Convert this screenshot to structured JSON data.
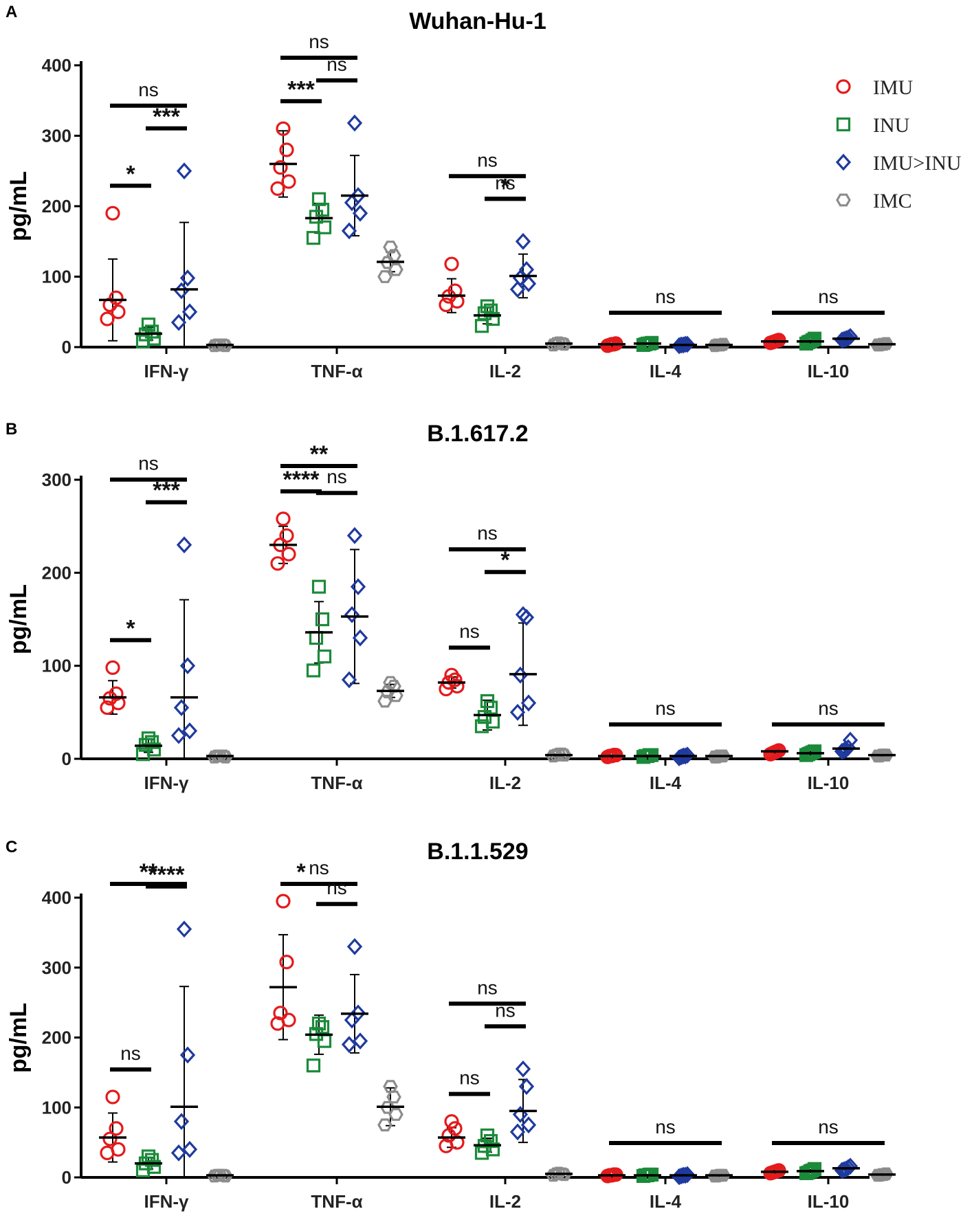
{
  "legend": [
    {
      "label": "IMU",
      "color": "#e41a1c",
      "marker": "circle"
    },
    {
      "label": "INU",
      "color": "#1b8a3a",
      "marker": "square"
    },
    {
      "label": "IMU>INU",
      "color": "#1f3a9e",
      "marker": "diamond"
    },
    {
      "label": "IMC",
      "color": "#8c8c8c",
      "marker": "hexagon"
    }
  ],
  "chart_data": [
    {
      "type": "scatter",
      "panel_label": "A",
      "title": "Wuhan-Hu-1",
      "xlabel": "",
      "ylabel": "pg/mL",
      "ylim": [
        0,
        400
      ],
      "yticks": [
        "0",
        "100",
        "200",
        "300",
        "400"
      ],
      "categories": [
        "IFN-γ",
        "TNF-α",
        "IL-2",
        "IL-4",
        "IL-10"
      ],
      "series": [
        {
          "name": "IMU",
          "points": [
            [
              40,
              50,
              60,
              70,
              190
            ],
            [
              225,
              235,
              255,
              280,
              310
            ],
            [
              60,
              65,
              72,
              80,
              118
            ],
            [
              2,
              3,
              4,
              4,
              5
            ],
            [
              6,
              7,
              8,
              9,
              10
            ]
          ],
          "mean": [
            67,
            260,
            73,
            4,
            8
          ],
          "sd": [
            58,
            47,
            24,
            1,
            2
          ]
        },
        {
          "name": "INU",
          "points": [
            [
              8,
              12,
              18,
              22,
              32
            ],
            [
              155,
              170,
              185,
              195,
              210
            ],
            [
              30,
              40,
              48,
              52,
              58
            ],
            [
              3,
              4,
              5,
              5,
              6
            ],
            [
              5,
              7,
              8,
              10,
              12
            ]
          ],
          "mean": [
            19,
            183,
            45,
            5,
            8
          ],
          "sd": [
            9,
            21,
            12,
            1,
            2
          ]
        },
        {
          "name": "IMU>INU",
          "points": [
            [
              35,
              50,
              80,
              98,
              250
            ],
            [
              165,
              190,
              205,
              215,
              318
            ],
            [
              82,
              90,
              98,
              110,
              150
            ],
            [
              2,
              3,
              3,
              4,
              4
            ],
            [
              10,
              11,
              12,
              13,
              15
            ]
          ],
          "mean": [
            82,
            215,
            101,
            3,
            12
          ],
          "sd": [
            95,
            57,
            31,
            1,
            2
          ]
        },
        {
          "name": "IMC",
          "points": [
            [
              2,
              2,
              3,
              3,
              3
            ],
            [
              100,
              110,
              120,
              130,
              142
            ],
            [
              3,
              4,
              5,
              5,
              6
            ],
            [
              2,
              3,
              3,
              3,
              4
            ],
            [
              3,
              3,
              4,
              4,
              5
            ]
          ],
          "mean": [
            3,
            121,
            5,
            3,
            4
          ],
          "sd": [
            0,
            14,
            1,
            0,
            1
          ]
        }
      ],
      "comparisons": [
        {
          "label": "ns",
          "group": 0,
          "from": 0,
          "to": 2
        },
        {
          "label": "***",
          "group": 0,
          "from": 1,
          "to": 2
        },
        {
          "label": "*",
          "group": 0,
          "from": 0,
          "to": 1
        },
        {
          "label": "ns",
          "group": 1,
          "from": 0,
          "to": 2
        },
        {
          "label": "ns",
          "group": 1,
          "from": 1,
          "to": 2
        },
        {
          "label": "***",
          "group": 1,
          "from": 0,
          "to": 1
        },
        {
          "label": "ns",
          "group": 2,
          "from": 0,
          "to": 2
        },
        {
          "label": "ns",
          "group": 2,
          "from": 1,
          "to": 2
        },
        {
          "label": "*",
          "group": 2,
          "from": 1,
          "to": 2
        },
        {
          "label": "ns",
          "group": 3,
          "from": 0,
          "to": 3
        },
        {
          "label": "ns",
          "group": 4,
          "from": 0,
          "to": 3
        }
      ]
    },
    {
      "type": "scatter",
      "panel_label": "B",
      "title": "B.1.617.2",
      "xlabel": "",
      "ylabel": "pg/mL",
      "ylim": [
        0,
        300
      ],
      "yticks": [
        "0",
        "100",
        "200",
        "300"
      ],
      "categories": [
        "IFN-γ",
        "TNF-α",
        "IL-2",
        "IL-4",
        "IL-10"
      ],
      "series": [
        {
          "name": "IMU",
          "points": [
            [
              55,
              60,
              65,
              70,
              98
            ],
            [
              210,
              220,
              230,
              240,
              258
            ],
            [
              75,
              78,
              82,
              85,
              90
            ],
            [
              2,
              3,
              3,
              4,
              4
            ],
            [
              5,
              6,
              7,
              8,
              9
            ]
          ],
          "mean": [
            66,
            230,
            82,
            3,
            8
          ],
          "sd": [
            18,
            20,
            6,
            1,
            2
          ]
        },
        {
          "name": "INU",
          "points": [
            [
              5,
              10,
              15,
              18,
              22
            ],
            [
              95,
              110,
              130,
              150,
              185
            ],
            [
              35,
              40,
              45,
              55,
              62
            ],
            [
              2,
              3,
              3,
              4,
              4
            ],
            [
              4,
              5,
              6,
              7,
              8
            ]
          ],
          "mean": [
            14,
            136,
            47,
            3,
            6
          ],
          "sd": [
            7,
            33,
            16,
            1,
            2
          ]
        },
        {
          "name": "IMU>INU",
          "points": [
            [
              25,
              30,
              55,
              100,
              230
            ],
            [
              85,
              130,
              155,
              185,
              240
            ],
            [
              50,
              60,
              90,
              152,
              155
            ],
            [
              1,
              2,
              3,
              3,
              4
            ],
            [
              8,
              9,
              10,
              12,
              20
            ]
          ],
          "mean": [
            66,
            153,
            91,
            3,
            11
          ],
          "sd": [
            105,
            72,
            55,
            1,
            4
          ]
        },
        {
          "name": "IMC",
          "points": [
            [
              2,
              2,
              3,
              3,
              3
            ],
            [
              62,
              68,
              72,
              78,
              82
            ],
            [
              3,
              4,
              4,
              5,
              5
            ],
            [
              2,
              2,
              3,
              3,
              3
            ],
            [
              3,
              3,
              4,
              4,
              4
            ]
          ],
          "mean": [
            3,
            73,
            4,
            3,
            4
          ],
          "sd": [
            0,
            7,
            1,
            0,
            1
          ]
        }
      ],
      "comparisons": [
        {
          "label": "ns",
          "group": 0,
          "from": 0,
          "to": 2
        },
        {
          "label": "***",
          "group": 0,
          "from": 1,
          "to": 2
        },
        {
          "label": "*",
          "group": 0,
          "from": 0,
          "to": 1
        },
        {
          "label": "**",
          "group": 1,
          "from": 0,
          "to": 2
        },
        {
          "label": "****",
          "group": 1,
          "from": 0,
          "to": 1
        },
        {
          "label": "ns",
          "group": 1,
          "from": 1,
          "to": 2
        },
        {
          "label": "ns",
          "group": 2,
          "from": 0,
          "to": 2
        },
        {
          "label": "ns",
          "group": 2,
          "from": 0,
          "to": 1
        },
        {
          "label": "*",
          "group": 2,
          "from": 1,
          "to": 2
        },
        {
          "label": "ns",
          "group": 3,
          "from": 0,
          "to": 3
        },
        {
          "label": "ns",
          "group": 4,
          "from": 0,
          "to": 3
        }
      ]
    },
    {
      "type": "scatter",
      "panel_label": "C",
      "title": "B.1.1.529",
      "xlabel": "",
      "ylabel": "pg/mL",
      "ylim": [
        0,
        400
      ],
      "yticks": [
        "0",
        "100",
        "200",
        "300",
        "400"
      ],
      "categories": [
        "IFN-γ",
        "TNF-α",
        "IL-2",
        "IL-4",
        "IL-10"
      ],
      "series": [
        {
          "name": "IMU",
          "points": [
            [
              35,
              40,
              55,
              70,
              115
            ],
            [
              220,
              225,
              235,
              308,
              395
            ],
            [
              45,
              50,
              60,
              70,
              80
            ],
            [
              2,
              3,
              3,
              4,
              4
            ],
            [
              6,
              7,
              8,
              9,
              10
            ]
          ],
          "mean": [
            57,
            272,
            57,
            3,
            8
          ],
          "sd": [
            35,
            75,
            14,
            1,
            2
          ]
        },
        {
          "name": "INU",
          "points": [
            [
              10,
              15,
              20,
              25,
              30
            ],
            [
              160,
              195,
              205,
              215,
              220
            ],
            [
              35,
              40,
              45,
              52,
              60
            ],
            [
              2,
              3,
              3,
              4,
              4
            ],
            [
              6,
              7,
              9,
              10,
              12
            ]
          ],
          "mean": [
            20,
            204,
            46,
            3,
            9
          ],
          "sd": [
            8,
            28,
            10,
            1,
            2
          ]
        },
        {
          "name": "IMU>INU",
          "points": [
            [
              35,
              40,
              80,
              175,
              355
            ],
            [
              190,
              195,
              225,
              235,
              330
            ],
            [
              65,
              75,
              90,
              130,
              155
            ],
            [
              1,
              2,
              3,
              3,
              4
            ],
            [
              10,
              11,
              12,
              14,
              16
            ]
          ],
          "mean": [
            101,
            234,
            95,
            3,
            13
          ],
          "sd": [
            172,
            56,
            45,
            1,
            2
          ]
        },
        {
          "name": "IMC",
          "points": [
            [
              2,
              2,
              3,
              3,
              3
            ],
            [
              75,
              90,
              100,
              115,
              130
            ],
            [
              3,
              4,
              5,
              5,
              6
            ],
            [
              2,
              2,
              3,
              3,
              3
            ],
            [
              3,
              3,
              4,
              4,
              5
            ]
          ],
          "mean": [
            3,
            101,
            5,
            3,
            4
          ],
          "sd": [
            0,
            27,
            1,
            0,
            1
          ]
        }
      ],
      "comparisons": [
        {
          "label": "**",
          "group": 0,
          "from": 0,
          "to": 2
        },
        {
          "label": "****",
          "group": 0,
          "from": 1,
          "to": 2
        },
        {
          "label": "ns",
          "group": 0,
          "from": 0,
          "to": 1
        },
        {
          "label": "ns",
          "group": 1,
          "from": 0,
          "to": 2
        },
        {
          "label": "*",
          "group": 1,
          "from": 0,
          "to": 1
        },
        {
          "label": "ns",
          "group": 1,
          "from": 1,
          "to": 2
        },
        {
          "label": "ns",
          "group": 2,
          "from": 0,
          "to": 2
        },
        {
          "label": "ns",
          "group": 2,
          "from": 0,
          "to": 1
        },
        {
          "label": "ns",
          "group": 2,
          "from": 1,
          "to": 2
        },
        {
          "label": "ns",
          "group": 3,
          "from": 0,
          "to": 3
        },
        {
          "label": "ns",
          "group": 4,
          "from": 0,
          "to": 3
        }
      ]
    }
  ]
}
